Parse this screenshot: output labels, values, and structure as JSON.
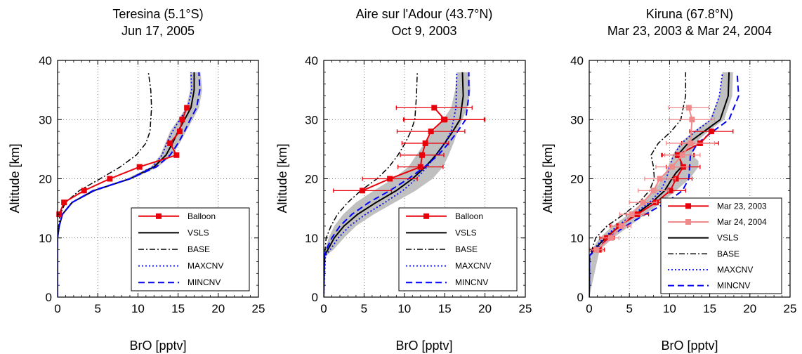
{
  "colors": {
    "balloon": "#e8000b",
    "balloon_2004": "#f08a8a",
    "vsls": "#000000",
    "base": "#000000",
    "maxcnv": "#0000ff",
    "mincnv": "#0000ff",
    "range_band": "#c0c0c0"
  },
  "chart_data": [
    {
      "type": "line",
      "title": "Teresina (5.1°S)",
      "subtitle": "Jun 17, 2005",
      "xlabel": "BrO [pptv]",
      "ylabel": "Altitude [km]",
      "xlim": [
        0,
        25
      ],
      "ylim": [
        0,
        40
      ],
      "xticks": [
        0,
        5,
        10,
        15,
        20,
        25
      ],
      "yticks": [
        0,
        10,
        20,
        30,
        40
      ],
      "grid": true,
      "legend_position": "bottom-right",
      "legend": [
        "Balloon",
        "VSLS",
        "BASE",
        "MAXCNV",
        "MINCNV"
      ],
      "series": [
        {
          "name": "Balloon",
          "style": "balloon",
          "x": [
            0.2,
            0.8,
            3.3,
            6.5,
            10.2,
            14.8,
            14.0,
            15.2,
            15.5,
            16.1
          ],
          "y": [
            14,
            16,
            18,
            20,
            22,
            24,
            26,
            28,
            30,
            32
          ],
          "xerr": []
        },
        {
          "name": "VSLS",
          "style": "vsls",
          "x": [
            0,
            0,
            0.2,
            0.6,
            1.8,
            4.5,
            9.0,
            12.0,
            13.5,
            14.3,
            15.0,
            15.8,
            16.6,
            17.0,
            17.0
          ],
          "y": [
            0,
            10,
            12,
            14,
            16,
            18,
            20,
            22,
            24,
            26,
            28,
            30,
            32,
            35,
            38
          ]
        },
        {
          "name": "BASE",
          "style": "base",
          "x": [
            0,
            0,
            0.3,
            1.0,
            2.7,
            5.3,
            7.8,
            9.8,
            11.0,
            11.5,
            11.7,
            11.6,
            11.3
          ],
          "y": [
            0,
            10,
            14,
            16,
            18,
            20,
            22,
            24,
            26,
            28,
            32,
            35,
            38
          ]
        },
        {
          "name": "MAXCNV",
          "style": "maxcnv",
          "x": [
            0,
            0,
            0.2,
            0.6,
            1.8,
            4.6,
            9.0,
            11.8,
            13.0,
            13.6,
            14.3,
            15.2,
            16.2,
            16.7,
            16.6
          ],
          "y": [
            0,
            10,
            12,
            14,
            16,
            18,
            20,
            22,
            24,
            26,
            28,
            30,
            32,
            35,
            38
          ]
        },
        {
          "name": "MINCNV",
          "style": "mincnv",
          "x": [
            0,
            0,
            0.2,
            0.6,
            1.8,
            4.4,
            9.0,
            12.3,
            14.0,
            15.0,
            15.8,
            16.5,
            17.3,
            17.7,
            17.6
          ],
          "y": [
            0,
            10,
            12,
            14,
            16,
            18,
            20,
            22,
            24,
            26,
            28,
            30,
            32,
            35,
            38
          ]
        }
      ],
      "band": {
        "x_low": [
          0,
          0,
          0.2,
          0.6,
          1.8,
          4.4,
          8.6,
          11.6,
          12.8,
          13.4,
          14.0,
          15.0,
          16.0,
          16.5,
          16.5
        ],
        "x_high": [
          0,
          0,
          0.3,
          0.7,
          2.0,
          4.8,
          9.4,
          12.5,
          14.3,
          15.2,
          16.0,
          16.8,
          17.6,
          18.0,
          17.8
        ],
        "y": [
          0,
          10,
          12,
          14,
          16,
          18,
          20,
          22,
          24,
          26,
          28,
          30,
          32,
          35,
          38
        ]
      }
    },
    {
      "type": "line",
      "title": "Aire sur l'Adour (43.7°N)",
      "subtitle": "Oct 9, 2003",
      "xlabel": "BrO [pptv]",
      "ylabel": "Altitude [km]",
      "xlim": [
        0,
        25
      ],
      "ylim": [
        0,
        40
      ],
      "xticks": [
        0,
        5,
        10,
        15,
        20,
        25
      ],
      "yticks": [
        0,
        10,
        20,
        30,
        40
      ],
      "grid": true,
      "legend_position": "bottom-right",
      "legend": [
        "Balloon",
        "VSLS",
        "BASE",
        "MAXCNV",
        "MINCNV"
      ],
      "series": [
        {
          "name": "Balloon",
          "style": "balloon",
          "x": [
            4.8,
            8.2,
            12.0,
            12.2,
            12.6,
            13.3,
            14.9,
            15.0,
            13.7
          ],
          "y": [
            18,
            20,
            22,
            24,
            26,
            28,
            30,
            30,
            32
          ],
          "xerr": [
            3.6,
            3.4,
            2.8,
            2.7,
            2.9,
            4.2,
            5.0,
            5.0,
            4.7
          ]
        },
        {
          "name": "VSLS",
          "style": "vsls",
          "x": [
            0,
            0.1,
            0.5,
            1.3,
            2.5,
            4.2,
            6.5,
            9.0,
            11.0,
            12.6,
            13.9,
            15.0,
            16.0,
            16.9,
            17.3,
            17.2
          ],
          "y": [
            0,
            7,
            8,
            10,
            12,
            14,
            16,
            18,
            20,
            22,
            24,
            26,
            28,
            30,
            34,
            38
          ]
        },
        {
          "name": "BASE",
          "style": "base",
          "x": [
            0,
            0.1,
            0.3,
            0.9,
            1.7,
            3.0,
            4.6,
            6.6,
            8.1,
            9.2,
            10.1,
            10.8,
            11.3,
            11.5,
            11.6
          ],
          "y": [
            0,
            7,
            10,
            12,
            14,
            16,
            18,
            20,
            22,
            24,
            26,
            28,
            30,
            34,
            38
          ]
        },
        {
          "name": "MAXCNV",
          "style": "maxcnv",
          "x": [
            0,
            0.2,
            0.8,
            1.8,
            3.2,
            5.2,
            7.6,
            9.8,
            11.5,
            12.8,
            14.0,
            15.0,
            15.8,
            16.4,
            16.5
          ],
          "y": [
            0,
            7,
            8,
            10,
            12,
            14,
            16,
            18,
            20,
            22,
            24,
            26,
            28,
            32,
            38
          ]
        },
        {
          "name": "MINCNV",
          "style": "mincnv",
          "x": [
            0,
            0.05,
            0.3,
            1.0,
            2.0,
            3.5,
            5.6,
            8.2,
            10.5,
            12.5,
            14.2,
            15.5,
            16.6,
            17.6,
            18.0,
            18.0
          ],
          "y": [
            0,
            7,
            8,
            10,
            12,
            14,
            16,
            18,
            20,
            22,
            24,
            26,
            28,
            30,
            34,
            38
          ]
        }
      ],
      "band": {
        "x_low": [
          0,
          0,
          0.2,
          0.6,
          1.3,
          2.4,
          4.0,
          6.2,
          8.6,
          10.5,
          11.5,
          12.5,
          13.6,
          14.8,
          15.8,
          16.3,
          16.5
        ],
        "x_high": [
          0,
          0.3,
          1.2,
          2.5,
          4.0,
          6.2,
          8.8,
          11.4,
          13.5,
          14.8,
          15.5,
          16.1,
          16.6,
          17.2,
          17.8,
          18.2,
          18.0
        ],
        "y": [
          0,
          7,
          8,
          10,
          12,
          14,
          16,
          18,
          20,
          22,
          24,
          26,
          28,
          30,
          32,
          35,
          38
        ]
      }
    },
    {
      "type": "line",
      "title": "Kiruna (67.8°N)",
      "subtitle": "Mar 23, 2003 & Mar 24, 2004",
      "xlabel": "BrO [pptv]",
      "ylabel": "Altitude [km]",
      "xlim": [
        0,
        25
      ],
      "ylim": [
        0,
        40
      ],
      "xticks": [
        0,
        5,
        10,
        15,
        20,
        25
      ],
      "yticks": [
        0,
        10,
        20,
        30,
        40
      ],
      "grid": true,
      "legend_position": "bottom-right",
      "legend": [
        "Mar 23, 2003",
        "Mar 24, 2004",
        "VSLS",
        "BASE",
        "MAXCNV",
        "MINCNV"
      ],
      "series": [
        {
          "name": "Mar 23, 2003",
          "style": "balloon",
          "x": [
            1.2,
            2.2,
            3.7,
            6.0,
            8.3,
            10.1,
            10.8,
            11.7,
            11.1,
            11.0,
            13.8,
            15.2
          ],
          "y": [
            8,
            10,
            12,
            14,
            16,
            18,
            20,
            22,
            24,
            24,
            26,
            28
          ],
          "xerr": [
            0.7,
            0.9,
            1.1,
            1.4,
            1.7,
            1.9,
            2.0,
            2.1,
            2.0,
            2.0,
            2.3,
            2.7
          ]
        },
        {
          "name": "Mar 24, 2004",
          "style": "balloon_2004",
          "x": [
            0.9,
            2.7,
            4.0,
            5.3,
            6.7,
            8.0,
            8.8,
            10.3,
            11.6,
            12.6,
            12.8,
            12.4
          ],
          "y": [
            8,
            10,
            12,
            14,
            16,
            18,
            20,
            22,
            24,
            26,
            30,
            32
          ],
          "xerr": [
            0.8,
            1.0,
            1.2,
            1.5,
            1.7,
            1.9,
            1.9,
            2.0,
            2.2,
            3.0,
            2.8,
            2.5
          ]
        },
        {
          "name": "VSLS",
          "style": "vsls",
          "x": [
            0,
            0.05,
            0.6,
            2.0,
            3.8,
            5.8,
            7.8,
            9.4,
            10.3,
            10.8,
            11.5,
            11.4,
            11.0,
            12.3,
            14.3,
            16.3,
            17.3,
            17.4
          ],
          "y": [
            0,
            7,
            8,
            10,
            12,
            14,
            16,
            18,
            20,
            21,
            22,
            23,
            24,
            26,
            28,
            30,
            34,
            38
          ]
        },
        {
          "name": "BASE",
          "style": "base",
          "x": [
            0,
            0.1,
            0.8,
            2.2,
            4.3,
            6.2,
            7.5,
            8.1,
            8.0,
            7.7,
            8.6,
            10.2,
            11.4,
            12.0,
            12.0
          ],
          "y": [
            0,
            7,
            10,
            12,
            14,
            16,
            18,
            20,
            22,
            24,
            26,
            28,
            30,
            34,
            38
          ]
        },
        {
          "name": "MAXCNV",
          "style": "maxcnv",
          "x": [
            0,
            0.05,
            0.5,
            1.8,
            3.5,
            5.5,
            7.5,
            8.9,
            9.6,
            10.0,
            10.5,
            11.5,
            13.2,
            15.2,
            16.2,
            16.6
          ],
          "y": [
            0,
            7,
            8,
            10,
            12,
            14,
            16,
            18,
            20,
            22,
            24,
            26,
            28,
            30,
            34,
            38
          ]
        },
        {
          "name": "MINCNV",
          "style": "mincnv",
          "x": [
            0,
            0.05,
            0.8,
            2.4,
            4.5,
            7.0,
            9.6,
            11.6,
            12.4,
            12.5,
            12.6,
            13.5,
            15.4,
            17.4,
            18.6,
            18.4
          ],
          "y": [
            0,
            7,
            8,
            10,
            12,
            14,
            16,
            18,
            20,
            22,
            24,
            26,
            28,
            30,
            34,
            38
          ]
        }
      ],
      "band": {
        "x_low": [
          0,
          0.3,
          1.3,
          2.9,
          4.9,
          6.6,
          8.0,
          9.1,
          9.8,
          10.1,
          10.4,
          11.3,
          13.0,
          15.0,
          16.2,
          16.6
        ],
        "x_high": [
          0,
          1.3,
          3.0,
          5.0,
          7.0,
          9.0,
          10.8,
          12.5,
          13.6,
          13.6,
          12.8,
          13.2,
          14.8,
          16.8,
          17.8,
          17.9
        ],
        "y": [
          0,
          8,
          10,
          12,
          14,
          16,
          18,
          20,
          22,
          23,
          24,
          26,
          28,
          30,
          34,
          38
        ]
      }
    }
  ]
}
